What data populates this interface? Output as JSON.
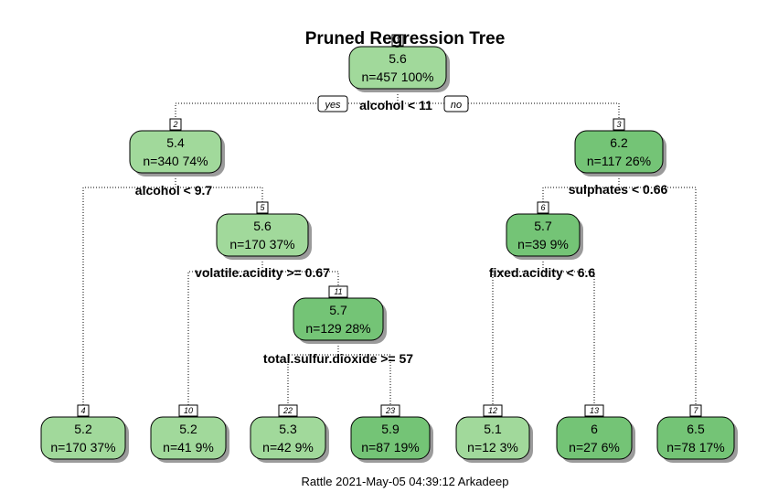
{
  "title": "Pruned Regression Tree",
  "footer": "Rattle 2021-May-05 04:39:12 Arkadeep",
  "colors": {
    "light": "#a1d99b",
    "dark": "#74c476"
  },
  "branch_labels": {
    "yes": "yes",
    "no": "no"
  },
  "nodes": [
    {
      "id": "1",
      "value": "5.6",
      "stats": "n=457  100%",
      "shade": "light",
      "split": "alcohol < 11"
    },
    {
      "id": "2",
      "value": "5.4",
      "stats": "n=340  74%",
      "shade": "light",
      "split": "alcohol < 9.7"
    },
    {
      "id": "3",
      "value": "6.2",
      "stats": "n=117  26%",
      "shade": "dark",
      "split": "sulphates < 0.66"
    },
    {
      "id": "5",
      "value": "5.6",
      "stats": "n=170  37%",
      "shade": "light",
      "split": "volatile.acidity >= 0.67"
    },
    {
      "id": "6",
      "value": "5.7",
      "stats": "n=39  9%",
      "shade": "dark",
      "split": "fixed.acidity < 6.6"
    },
    {
      "id": "11",
      "value": "5.7",
      "stats": "n=129  28%",
      "shade": "dark",
      "split": "total.sulfur.dioxide >= 57"
    },
    {
      "id": "4",
      "value": "5.2",
      "stats": "n=170  37%",
      "shade": "light"
    },
    {
      "id": "10",
      "value": "5.2",
      "stats": "n=41  9%",
      "shade": "light"
    },
    {
      "id": "22",
      "value": "5.3",
      "stats": "n=42  9%",
      "shade": "light"
    },
    {
      "id": "23",
      "value": "5.9",
      "stats": "n=87  19%",
      "shade": "dark"
    },
    {
      "id": "12",
      "value": "5.1",
      "stats": "n=12  3%",
      "shade": "light"
    },
    {
      "id": "13",
      "value": "6",
      "stats": "n=27  6%",
      "shade": "dark"
    },
    {
      "id": "7",
      "value": "6.5",
      "stats": "n=78  17%",
      "shade": "dark"
    }
  ],
  "edges": [
    [
      "1",
      "2"
    ],
    [
      "1",
      "3"
    ],
    [
      "2",
      "4"
    ],
    [
      "2",
      "5"
    ],
    [
      "5",
      "10"
    ],
    [
      "5",
      "11"
    ],
    [
      "11",
      "22"
    ],
    [
      "11",
      "23"
    ],
    [
      "3",
      "6"
    ],
    [
      "3",
      "7"
    ],
    [
      "6",
      "12"
    ],
    [
      "6",
      "13"
    ]
  ]
}
